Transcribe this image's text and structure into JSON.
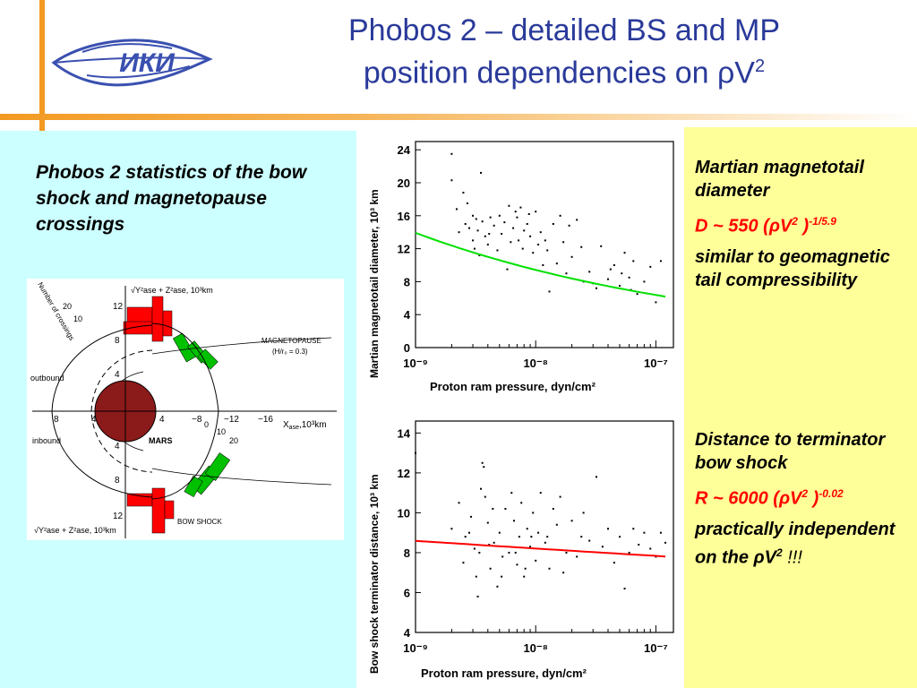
{
  "title": {
    "line1": "Phobos 2 – detailed BS and MP",
    "line2": "position dependencies on ρV",
    "sup": "2"
  },
  "left_text": "Phobos 2 statistics of the bow shock and magnetopause crossings",
  "logo": {
    "text": "ИКИ"
  },
  "diagram": {
    "labels": {
      "magnetopause": "MAGNETOPAUSE",
      "magnetopause_sub": "(H/r₀ = 0.3)",
      "outbound": "outbound",
      "inbound": "inbound",
      "mars": "MARS",
      "bow_shock": "BOW SHOCK",
      "x_axis": "X",
      "x_sub": "ase",
      "x_unit": ",10³km",
      "y_top_expr": "√Y²ase + Z²ase, 10³km",
      "y_bottom_expr": "√Y²ase + Z²ase, 10³km",
      "crossings": "Number of crossings"
    },
    "x_ticks": [
      "8",
      "4",
      "4",
      "−8",
      "−12",
      "−16"
    ],
    "y_ticks_top": [
      "12",
      "8",
      "4"
    ],
    "y_ticks_bottom": [
      "4",
      "8",
      "12"
    ],
    "count_ticks_top": [
      "20",
      "10"
    ],
    "count_ticks_bottom": [
      "0",
      "10",
      "20"
    ],
    "colors": {
      "mp_bars": "#ff0000",
      "bs_bars": "#00c000",
      "mars": "#8b1a1a"
    }
  },
  "right_block1": {
    "line1": "Martian magnetotail diameter",
    "formula_main": "D ~ 550 (ρV",
    "formula_sq": "2",
    "formula_close": " )",
    "formula_exp": "-1/5.9",
    "line3": "similar to geomagnetic tail compressibility"
  },
  "right_block2": {
    "line1": "Distance to terminator bow shock",
    "formula_main": "R ~ 6000 (ρV",
    "formula_sq": "2",
    "formula_close": " )",
    "formula_exp": "-0.02",
    "line3": "practically independent on the ρV",
    "line3_sq": "2",
    "line3_end": " !!!"
  },
  "chart_data": [
    {
      "type": "scatter",
      "ylabel": "Martian magnetotail diameter, 10³ km",
      "xlabel": "Proton ram pressure, dyn/cm²",
      "x_scale": "log",
      "xlim": [
        1e-09,
        1.4e-07
      ],
      "ylim": [
        0,
        25
      ],
      "x_tick_labels": [
        "10⁻⁹",
        "10⁻⁸",
        "10⁻⁷"
      ],
      "y_ticks": [
        0,
        4,
        8,
        12,
        16,
        20,
        24
      ],
      "fit_color": "#00e000",
      "fit": {
        "coef": 550,
        "exponent": -0.1695
      },
      "points": [
        [
          2e-09,
          23.5
        ],
        [
          2e-09,
          20.3
        ],
        [
          2.2e-09,
          16.8
        ],
        [
          2.5e-09,
          18.8
        ],
        [
          2.6e-09,
          15.0
        ],
        [
          2.8e-09,
          14.5
        ],
        [
          3e-09,
          13.0
        ],
        [
          3e-09,
          16.0
        ],
        [
          3.2e-09,
          15.6
        ],
        [
          3.3e-09,
          14.2
        ],
        [
          3.5e-09,
          21.2
        ],
        [
          3.6e-09,
          15.3
        ],
        [
          3.8e-09,
          13.5
        ],
        [
          4e-09,
          12.5
        ],
        [
          4.2e-09,
          15.8
        ],
        [
          4.5e-09,
          14.8
        ],
        [
          4.8e-09,
          11.8
        ],
        [
          5e-09,
          16.0
        ],
        [
          5.2e-09,
          13.8
        ],
        [
          5.5e-09,
          15.2
        ],
        [
          6e-09,
          17.2
        ],
        [
          6.2e-09,
          12.8
        ],
        [
          6.5e-09,
          14.5
        ],
        [
          7e-09,
          15.8
        ],
        [
          7.2e-09,
          13.0
        ],
        [
          7.5e-09,
          17.0
        ],
        [
          7.8e-09,
          12.0
        ],
        [
          8e-09,
          14.2
        ],
        [
          8.5e-09,
          15.0
        ],
        [
          9e-09,
          13.5
        ],
        [
          9.5e-09,
          11.5
        ],
        [
          1e-08,
          16.5
        ],
        [
          1.05e-08,
          12.5
        ],
        [
          1.1e-08,
          14.0
        ],
        [
          1.15e-08,
          10.0
        ],
        [
          1.2e-08,
          13.0
        ],
        [
          1.3e-08,
          6.8
        ],
        [
          1.4e-08,
          15.0
        ],
        [
          1.5e-08,
          10.2
        ],
        [
          1.6e-08,
          16.0
        ],
        [
          1.7e-08,
          12.8
        ],
        [
          1.8e-08,
          9.0
        ],
        [
          2e-08,
          11.0
        ],
        [
          2.2e-08,
          15.5
        ],
        [
          2.5e-08,
          8.0
        ],
        [
          2.8e-08,
          9.2
        ],
        [
          3e-08,
          7.8
        ],
        [
          3.5e-08,
          12.3
        ],
        [
          4e-08,
          8.3
        ],
        [
          4.5e-08,
          10.0
        ],
        [
          5e-08,
          7.5
        ],
        [
          5.5e-08,
          11.5
        ],
        [
          6e-08,
          8.5
        ],
        [
          6.5e-08,
          10.5
        ],
        [
          7e-08,
          6.5
        ],
        [
          8e-08,
          8.0
        ],
        [
          9e-08,
          9.8
        ],
        [
          1e-07,
          5.5
        ],
        [
          1.1e-07,
          10.5
        ],
        [
          2.3e-09,
          14.0
        ],
        [
          2.7e-09,
          17.5
        ],
        [
          3.1e-09,
          12.0
        ],
        [
          3.4e-09,
          11.2
        ],
        [
          4.1e-09,
          13.8
        ],
        [
          5.8e-09,
          9.5
        ],
        [
          6.8e-09,
          16.5
        ],
        [
          8.8e-09,
          16.2
        ],
        [
          1.25e-08,
          11.8
        ],
        [
          1.9e-08,
          14.8
        ],
        [
          2.4e-08,
          12.2
        ],
        [
          3.2e-08,
          7.2
        ],
        [
          4.2e-08,
          9.5
        ],
        [
          5.2e-08,
          9.0
        ],
        [
          6.2e-08,
          7.0
        ]
      ]
    },
    {
      "type": "scatter",
      "ylabel": "Bow shock terminator distance, 10³ km",
      "xlabel": "Proton ram pressure, dyn/cm²",
      "x_scale": "log",
      "xlim": [
        1e-09,
        1.4e-07
      ],
      "ylim": [
        4,
        14.6
      ],
      "x_tick_labels": [
        "10⁻⁹",
        "10⁻⁸",
        "10⁻⁷"
      ],
      "y_ticks": [
        4,
        6,
        8,
        10,
        12,
        14
      ],
      "fit_color": "#ff0000",
      "fit": {
        "coef": 6000,
        "exponent": -0.02
      },
      "points": [
        [
          1e-09,
          13.0
        ],
        [
          2e-09,
          9.2
        ],
        [
          2.3e-09,
          10.5
        ],
        [
          2.6e-09,
          8.8
        ],
        [
          2.9e-09,
          9.8
        ],
        [
          3.1e-09,
          8.2
        ],
        [
          3.3e-09,
          5.8
        ],
        [
          3.5e-09,
          11.2
        ],
        [
          3.6e-09,
          12.5
        ],
        [
          3.7e-09,
          12.3
        ],
        [
          3.8e-09,
          10.8
        ],
        [
          4e-09,
          9.5
        ],
        [
          4.2e-09,
          7.2
        ],
        [
          4.5e-09,
          8.5
        ],
        [
          4.8e-09,
          6.3
        ],
        [
          5e-09,
          9.0
        ],
        [
          5.3e-09,
          7.8
        ],
        [
          5.6e-09,
          10.2
        ],
        [
          6e-09,
          8.0
        ],
        [
          6.3e-09,
          11.0
        ],
        [
          6.6e-09,
          9.6
        ],
        [
          7e-09,
          7.4
        ],
        [
          7.3e-09,
          8.8
        ],
        [
          7.6e-09,
          10.5
        ],
        [
          8e-09,
          6.8
        ],
        [
          8.5e-09,
          9.2
        ],
        [
          9e-09,
          8.3
        ],
        [
          9.5e-09,
          10.0
        ],
        [
          1e-08,
          7.6
        ],
        [
          1.05e-08,
          9.0
        ],
        [
          1.1e-08,
          11.0
        ],
        [
          1.2e-08,
          8.5
        ],
        [
          1.3e-08,
          7.2
        ],
        [
          1.4e-08,
          10.2
        ],
        [
          1.5e-08,
          9.4
        ],
        [
          1.6e-08,
          10.8
        ],
        [
          1.8e-08,
          8.0
        ],
        [
          2e-08,
          9.6
        ],
        [
          2.2e-08,
          7.8
        ],
        [
          2.5e-08,
          10.0
        ],
        [
          2.8e-08,
          8.6
        ],
        [
          3.2e-08,
          11.8
        ],
        [
          3.6e-08,
          8.3
        ],
        [
          4e-08,
          9.2
        ],
        [
          4.5e-08,
          7.5
        ],
        [
          5e-08,
          8.8
        ],
        [
          5.5e-08,
          6.2
        ],
        [
          6e-08,
          8.0
        ],
        [
          6.5e-08,
          9.2
        ],
        [
          7.2e-08,
          8.4
        ],
        [
          8e-08,
          9.0
        ],
        [
          9e-08,
          8.2
        ],
        [
          1e-07,
          7.8
        ],
        [
          1.1e-07,
          9.0
        ],
        [
          1.2e-07,
          8.5
        ],
        [
          2.5e-09,
          7.5
        ],
        [
          2.8e-09,
          9.0
        ],
        [
          3.2e-09,
          6.8
        ],
        [
          3.4e-09,
          8.0
        ],
        [
          4.1e-09,
          8.4
        ],
        [
          4.4e-09,
          10.2
        ],
        [
          5.2e-09,
          6.8
        ],
        [
          6.8e-09,
          8.0
        ],
        [
          8.2e-09,
          7.2
        ],
        [
          9.2e-09,
          8.8
        ],
        [
          1.25e-08,
          8.8
        ],
        [
          1.7e-08,
          7.0
        ],
        [
          2.4e-08,
          8.8
        ]
      ]
    }
  ]
}
